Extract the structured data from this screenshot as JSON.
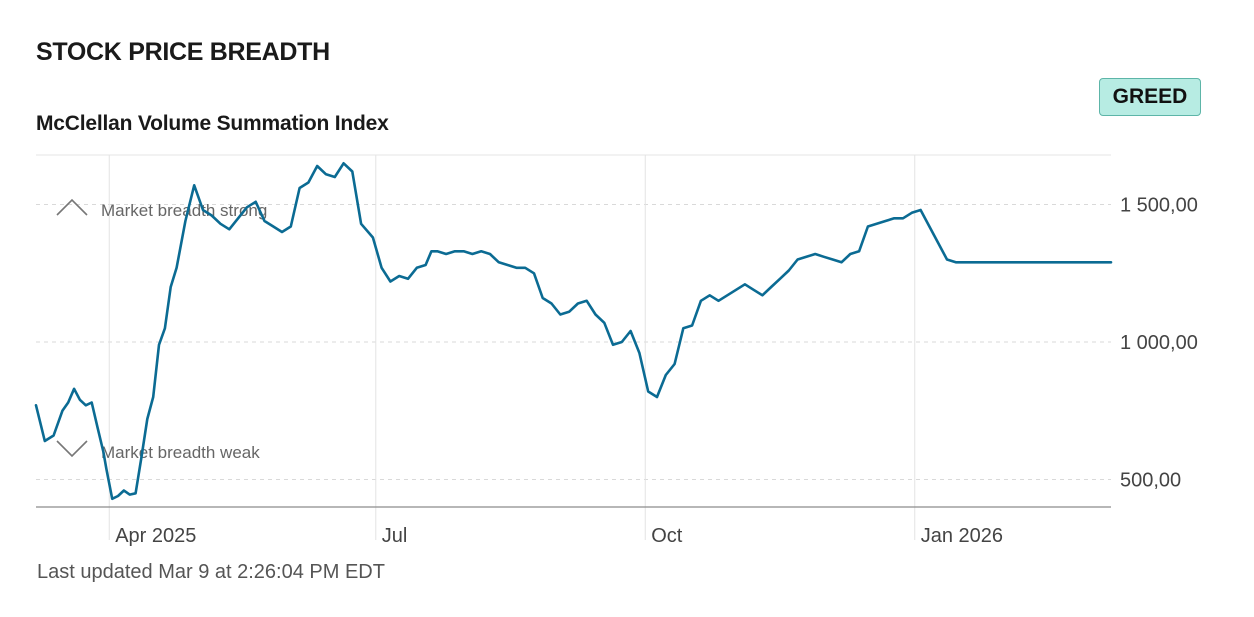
{
  "header": {
    "title": "STOCK PRICE BREADTH",
    "badge": "GREED",
    "footer": "Last updated Mar 9 at 2:26:04 PM EDT"
  },
  "colors": {
    "line": "#0b6b93",
    "badge_bg": "#b7ece3",
    "badge_border": "#5db5a8",
    "grid": "#d9d9d9"
  },
  "chart_data": {
    "type": "line",
    "title": "McClellan Volume Summation Index",
    "xlabel": "",
    "ylabel": "",
    "x_range": [
      "2025-03-07",
      "2026-03-09"
    ],
    "ylim": [
      400,
      1680
    ],
    "y_ticks": [
      {
        "value": 500,
        "label": "500,00"
      },
      {
        "value": 1000,
        "label": "1 000,00"
      },
      {
        "value": 1500,
        "label": "1 500,00"
      }
    ],
    "x_ticks": [
      {
        "date": "2025-04-01",
        "label": "Apr 2025"
      },
      {
        "date": "2025-07-01",
        "label": "Jul"
      },
      {
        "date": "2025-10-01",
        "label": "Oct"
      },
      {
        "date": "2026-01-01",
        "label": "Jan 2026"
      }
    ],
    "annotations": [
      {
        "label": "Market breadth strong",
        "icon": "chevron-up-icon"
      },
      {
        "label": "Market breadth weak",
        "icon": "chevron-down-icon"
      }
    ],
    "grid": true,
    "series": [
      {
        "name": "",
        "x": [
          "2025-03-07",
          "2025-03-10",
          "2025-03-13",
          "2025-03-16",
          "2025-03-18",
          "2025-03-20",
          "2025-03-22",
          "2025-03-24",
          "2025-03-26",
          "2025-03-28",
          "2025-03-30",
          "2025-03-31",
          "2025-04-02",
          "2025-04-04",
          "2025-04-06",
          "2025-04-08",
          "2025-04-10",
          "2025-04-12",
          "2025-04-14",
          "2025-04-16",
          "2025-04-18",
          "2025-04-20",
          "2025-04-22",
          "2025-04-24",
          "2025-04-27",
          "2025-04-30",
          "2025-05-03",
          "2025-05-06",
          "2025-05-09",
          "2025-05-12",
          "2025-05-15",
          "2025-05-18",
          "2025-05-21",
          "2025-05-24",
          "2025-05-27",
          "2025-05-30",
          "2025-06-02",
          "2025-06-05",
          "2025-06-08",
          "2025-06-11",
          "2025-06-14",
          "2025-06-17",
          "2025-06-20",
          "2025-06-23",
          "2025-06-26",
          "2025-06-30",
          "2025-07-03",
          "2025-07-06",
          "2025-07-09",
          "2025-07-12",
          "2025-07-15",
          "2025-07-18",
          "2025-07-20",
          "2025-07-22",
          "2025-07-25",
          "2025-07-28",
          "2025-07-31",
          "2025-08-03",
          "2025-08-06",
          "2025-08-09",
          "2025-08-12",
          "2025-08-15",
          "2025-08-18",
          "2025-08-21",
          "2025-08-24",
          "2025-08-27",
          "2025-08-30",
          "2025-09-02",
          "2025-09-05",
          "2025-09-08",
          "2025-09-11",
          "2025-09-14",
          "2025-09-17",
          "2025-09-20",
          "2025-09-23",
          "2025-09-26",
          "2025-09-29",
          "2025-10-02",
          "2025-10-05",
          "2025-10-08",
          "2025-10-11",
          "2025-10-14",
          "2025-10-17",
          "2025-10-20",
          "2025-10-23",
          "2025-10-26",
          "2025-10-29",
          "2025-11-01",
          "2025-11-04",
          "2025-11-07",
          "2025-11-10",
          "2025-11-13",
          "2025-11-16",
          "2025-11-19",
          "2025-11-22",
          "2025-11-25",
          "2025-11-28",
          "2025-12-01",
          "2025-12-04",
          "2025-12-07",
          "2025-12-10",
          "2025-12-13",
          "2025-12-16",
          "2025-12-19",
          "2025-12-22",
          "2025-12-25",
          "2025-12-28",
          "2025-12-31",
          "2026-01-03",
          "2026-01-06",
          "2026-01-09",
          "2026-01-12",
          "2026-01-15",
          "2026-01-18",
          "2026-01-21",
          "2026-01-24",
          "2026-01-27",
          "2026-01-30",
          "2026-02-02",
          "2026-02-05",
          "2026-02-08",
          "2026-02-11",
          "2026-02-14",
          "2026-02-17",
          "2026-02-20",
          "2026-02-23",
          "2026-02-26",
          "2026-03-01",
          "2026-03-04",
          "2026-03-09"
        ],
        "y": [
          770,
          640,
          660,
          750,
          780,
          830,
          790,
          770,
          780,
          690,
          600,
          540,
          430,
          440,
          460,
          445,
          450,
          580,
          720,
          800,
          990,
          1050,
          1200,
          1270,
          1440,
          1570,
          1480,
          1460,
          1430,
          1410,
          1450,
          1490,
          1510,
          1440,
          1420,
          1400,
          1420,
          1560,
          1580,
          1640,
          1610,
          1600,
          1650,
          1620,
          1430,
          1380,
          1270,
          1220,
          1240,
          1230,
          1270,
          1280,
          1330,
          1330,
          1320,
          1330,
          1330,
          1320,
          1330,
          1320,
          1290,
          1280,
          1270,
          1270,
          1250,
          1160,
          1140,
          1100,
          1110,
          1140,
          1150,
          1100,
          1070,
          990,
          1000,
          1040,
          960,
          820,
          800,
          880,
          920,
          1050,
          1060,
          1150,
          1170,
          1150,
          1170,
          1190,
          1210,
          1190,
          1170,
          1200,
          1230,
          1260,
          1300,
          1310,
          1320,
          1310,
          1300,
          1290,
          1320,
          1330,
          1420,
          1430,
          1440,
          1450,
          1450,
          1470,
          1480,
          1420,
          1360,
          1300,
          1290,
          1290,
          1290,
          1290,
          1290,
          1290,
          1290,
          1290,
          1290,
          1290,
          1290,
          1290,
          1290,
          1290,
          1290,
          1290,
          1290,
          1290
        ]
      }
    ]
  }
}
